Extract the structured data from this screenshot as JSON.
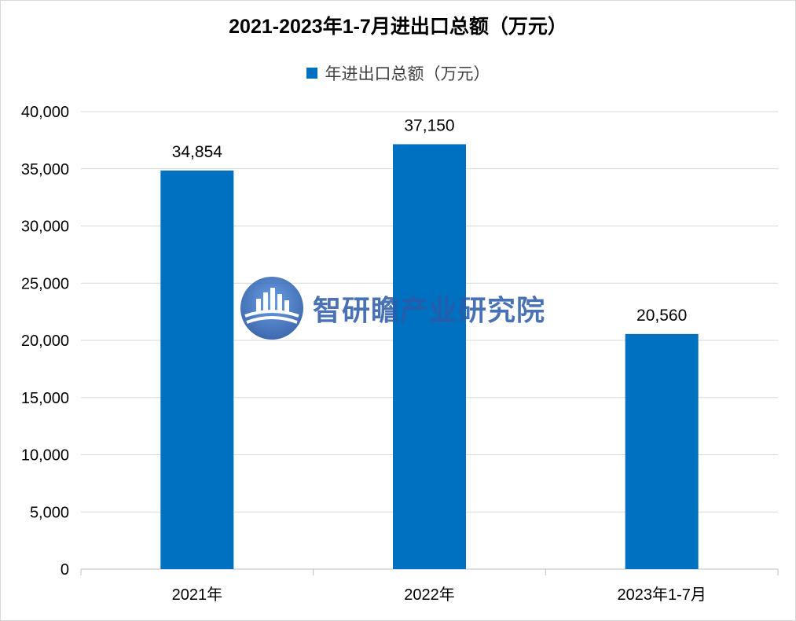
{
  "chart_data": {
    "type": "bar",
    "title": "2021-2023年1-7月进出口总额（万元）",
    "categories": [
      "2021年",
      "2022年",
      "2023年1-7月"
    ],
    "series": [
      {
        "name": "年进出口总额（万元）",
        "values": [
          34854,
          37150,
          20560
        ]
      }
    ],
    "data_labels": [
      "34,854",
      "37,150",
      "20,560"
    ],
    "ylim": [
      0,
      40000
    ],
    "yticks": [
      0,
      5000,
      10000,
      15000,
      20000,
      25000,
      30000,
      35000,
      40000
    ],
    "ytick_labels": [
      "0",
      "5,000",
      "10,000",
      "15,000",
      "20,000",
      "25,000",
      "30,000",
      "35,000",
      "40,000"
    ],
    "grid": true,
    "legend": "top-center",
    "bar_color": "#0070C0"
  },
  "watermark": {
    "text": "智研瞻产业研究院",
    "icon": "city-book-logo-icon"
  }
}
